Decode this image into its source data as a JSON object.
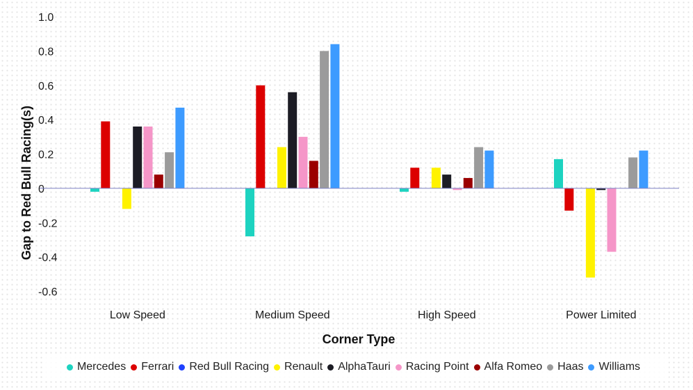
{
  "chart_data": {
    "type": "bar",
    "xlabel": "Corner Type",
    "ylabel": "Gap to Red Bull Racing(s)",
    "ylim": [
      -0.6,
      1.0
    ],
    "yticks": [
      1.0,
      0.8,
      0.6,
      0.4,
      0.2,
      0,
      -0.2,
      -0.4,
      -0.6
    ],
    "ytick_labels": [
      "1.0",
      "0.8",
      "0.6",
      "0.4",
      "0.2",
      "0",
      "-0.2",
      "-0.4",
      "-0.6"
    ],
    "categories": [
      "Low Speed",
      "Medium Speed",
      "High Speed",
      "Power Limited"
    ],
    "legend_position": "bottom",
    "series": [
      {
        "name": "Mercedes",
        "color": "#1dd3c0",
        "values": [
          -0.02,
          -0.28,
          -0.02,
          0.17
        ]
      },
      {
        "name": "Ferrari",
        "color": "#dc0000",
        "values": [
          0.39,
          0.6,
          0.12,
          -0.13
        ]
      },
      {
        "name": "Red Bull Racing",
        "color": "#1e41ff",
        "values": [
          0,
          0,
          0,
          0
        ]
      },
      {
        "name": "Renault",
        "color": "#fff200",
        "values": [
          -0.12,
          0.24,
          0.12,
          -0.52
        ]
      },
      {
        "name": "AlphaTauri",
        "color": "#1c1c24",
        "values": [
          0.36,
          0.56,
          0.08,
          -0.01
        ]
      },
      {
        "name": "Racing Point",
        "color": "#f596c8",
        "values": [
          0.36,
          0.3,
          -0.01,
          -0.37
        ]
      },
      {
        "name": "Alfa Romeo",
        "color": "#9b0000",
        "values": [
          0.08,
          0.16,
          0.06,
          0
        ]
      },
      {
        "name": "Haas",
        "color": "#9b9b9b",
        "values": [
          0.21,
          0.8,
          0.24,
          0.18
        ]
      },
      {
        "name": "Williams",
        "color": "#3d9bff",
        "values": [
          0.47,
          0.84,
          0.22,
          0.22
        ]
      }
    ]
  }
}
